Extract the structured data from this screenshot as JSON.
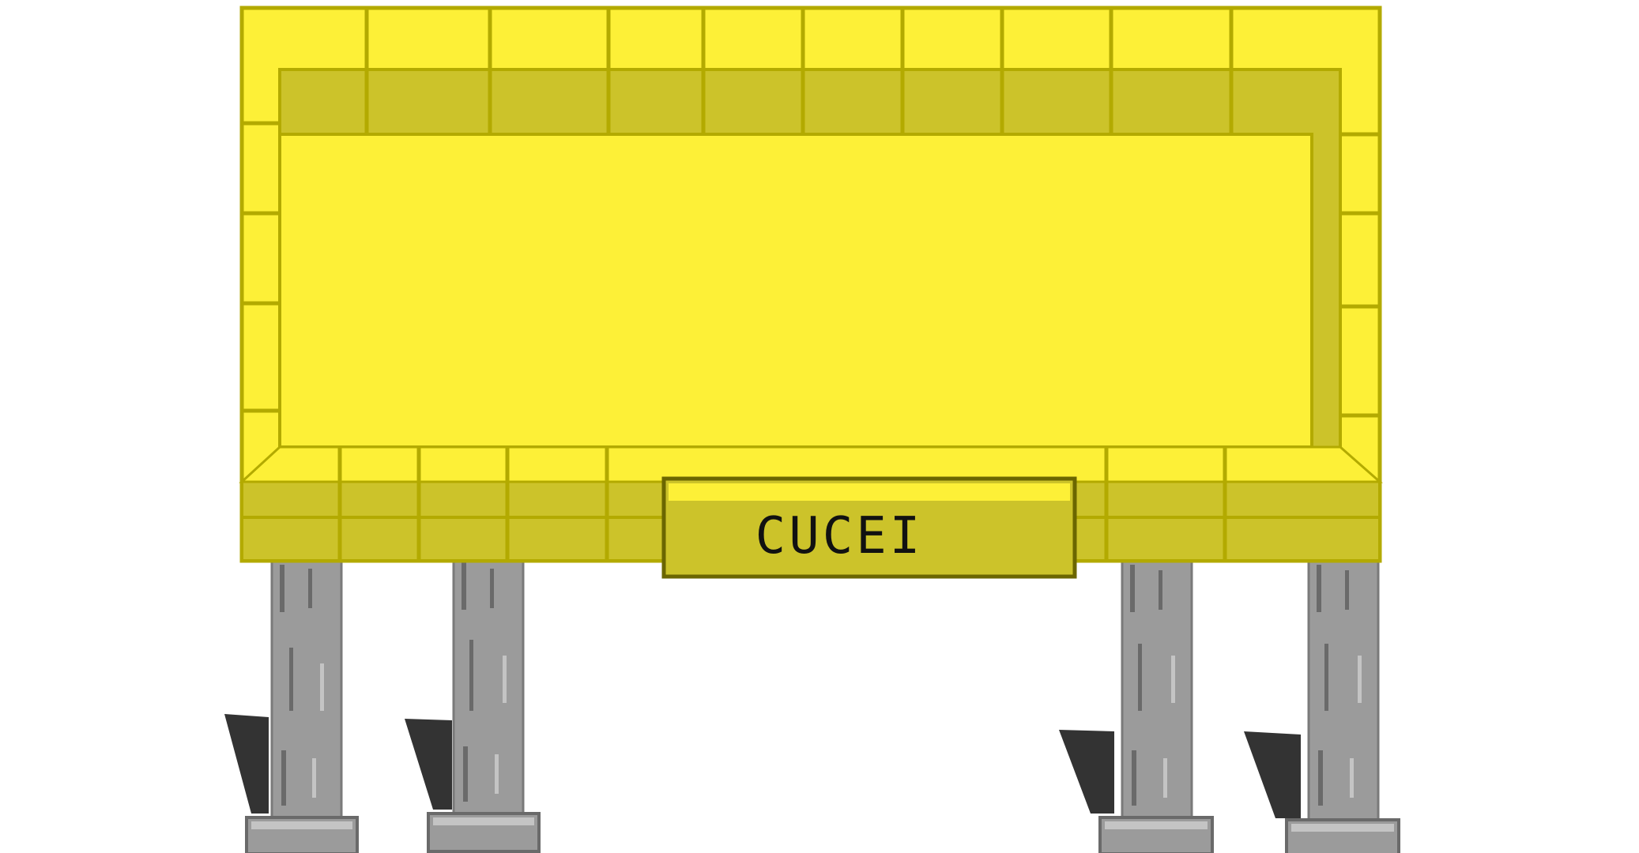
{
  "billboard": {
    "plaque_label": "CUCEI"
  },
  "colors": {
    "background": "#ffffff",
    "board_bright": "#fdf037",
    "board_shade": "#ccc32a",
    "board_line": "#b3aa00",
    "plaque_fill": "#ccc32a",
    "plaque_border": "#6b6600",
    "post_fill": "#9b9b9b",
    "post_dark": "#6a6a6a",
    "post_light": "#c4c4c4",
    "shadow": "#333333"
  },
  "posts": {
    "count": 4
  }
}
